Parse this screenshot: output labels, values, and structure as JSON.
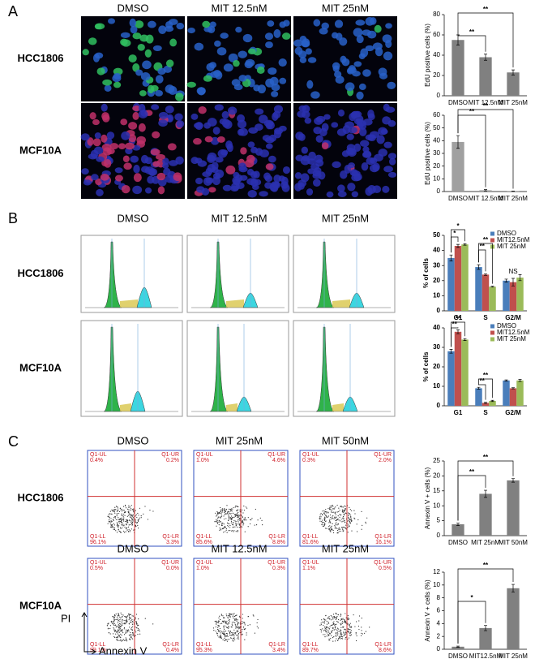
{
  "panels": [
    {
      "label": "A",
      "columns": [
        "DMSO",
        "MIT 12.5nM",
        "MIT 25nM"
      ],
      "rows": [
        "HCC1806",
        "MCF10A"
      ]
    },
    {
      "label": "B",
      "columns": [
        "DMSO",
        "MIT 12.5nM",
        "MIT 25nM"
      ],
      "rows": [
        "HCC1806",
        "MCF10A"
      ]
    },
    {
      "label": "C",
      "columns": [
        [
          "DMSO",
          "MIT 25nM",
          "MIT 50nM"
        ],
        [
          "DMSO",
          "MIT 12.5nM",
          "MIT 25nM"
        ]
      ],
      "rows": [
        "HCC1806",
        "MCF10A"
      ],
      "quadrant_names": [
        "Q1-UL",
        "Q1-UR",
        "Q1-LL",
        "Q1-LR"
      ],
      "quadrants": [
        [
          [
            "0.4%",
            "0.2%",
            "96.1%",
            "3.3%"
          ],
          [
            "1.0%",
            "4.6%",
            "85.6%",
            "8.8%"
          ],
          [
            "0.3%",
            "2.0%",
            "81.6%",
            "16.1%"
          ]
        ],
        [
          [
            "0.5%",
            "0.0%",
            "99.1%",
            "0.4%"
          ],
          [
            "1.0%",
            "0.3%",
            "95.3%",
            "3.4%"
          ],
          [
            "1.1%",
            "0.5%",
            "89.7%",
            "8.6%"
          ]
        ]
      ],
      "y_axis": "PI",
      "x_axis": "Annexin V"
    }
  ],
  "chart_data": [
    {
      "type": "bar",
      "ylabel": "EdU positive cells (%)",
      "categories": [
        "DMSO",
        "MIT 12.5nM",
        "MIT 25nM"
      ],
      "values": [
        55,
        38,
        23
      ],
      "errors": [
        5,
        3,
        2.5
      ],
      "color": "#808080",
      "ylim": [
        0,
        80
      ],
      "yticks": [
        0,
        20,
        40,
        60,
        80
      ],
      "annotations": [
        "**",
        "**"
      ]
    },
    {
      "type": "bar",
      "ylabel": "EdU positive cells (%)",
      "categories": [
        "DMSO",
        "MIT 12.5nM",
        "MIT 25nM"
      ],
      "values": [
        39,
        1,
        0.2
      ],
      "errors": [
        5,
        0.5,
        0.1
      ],
      "color": "#a0a0a0",
      "ylim": [
        0,
        60
      ],
      "yticks": [
        0,
        10,
        20,
        30,
        40,
        50,
        60
      ],
      "annotations": [
        "**",
        "**"
      ]
    },
    {
      "type": "grouped",
      "ylabel": "% of cells",
      "categories": [
        "G1",
        "S",
        "G2/M"
      ],
      "series": [
        {
          "name": "DMSO",
          "color": "#4a7ebb",
          "values": [
            35,
            29,
            20
          ],
          "errors": [
            2,
            1.5,
            1
          ]
        },
        {
          "name": "MIT12.5nM",
          "color": "#c0504d",
          "values": [
            43,
            24,
            19
          ],
          "errors": [
            1,
            0.5,
            2.5
          ]
        },
        {
          "name": "MIT 25nM",
          "color": "#9bbb59",
          "values": [
            44,
            16,
            22
          ],
          "errors": [
            0.5,
            0.3,
            2
          ]
        }
      ],
      "ylim": [
        0,
        50
      ],
      "yticks": [
        0,
        10,
        20,
        30,
        40,
        50
      ],
      "annotations": [
        "*",
        "*",
        "**",
        "**",
        "NS"
      ]
    },
    {
      "type": "grouped",
      "ylabel": "% of cells",
      "categories": [
        "G1",
        "S",
        "G2/M"
      ],
      "series": [
        {
          "name": "DMSO",
          "color": "#4a7ebb",
          "values": [
            28,
            9,
            13
          ],
          "errors": [
            1,
            0.5,
            0.3
          ]
        },
        {
          "name": "MIT12.5nM",
          "color": "#c0504d",
          "values": [
            38,
            1.5,
            9
          ],
          "errors": [
            1,
            0.3,
            0.3
          ]
        },
        {
          "name": "MIT 25nM",
          "color": "#9bbb59",
          "values": [
            34,
            2.5,
            13
          ],
          "errors": [
            0.5,
            0.3,
            0.5
          ]
        }
      ],
      "ylim": [
        0,
        40
      ],
      "yticks": [
        0,
        10,
        20,
        30,
        40
      ],
      "annotations": [
        "**",
        "**",
        "**",
        "**"
      ]
    },
    {
      "type": "bar",
      "ylabel": "Annexin V + cells (%)",
      "categories": [
        "DMSO",
        "MIT 25nM",
        "MIT 50nM"
      ],
      "values": [
        3.8,
        14,
        18.5
      ],
      "errors": [
        0.4,
        1.2,
        0.6
      ],
      "color": "#808080",
      "ylim": [
        0,
        25
      ],
      "yticks": [
        0,
        5,
        10,
        15,
        20,
        25
      ],
      "annotations": [
        "**",
        "**"
      ]
    },
    {
      "type": "bar",
      "ylabel": "Annexin V + cells (%)",
      "categories": [
        "DMSO",
        "MIT12.5nM",
        "MIT 25nM"
      ],
      "values": [
        0.4,
        3.3,
        9.5
      ],
      "errors": [
        0.1,
        0.4,
        0.6
      ],
      "color": "#808080",
      "ylim": [
        0,
        12
      ],
      "yticks": [
        0,
        2,
        4,
        6,
        8,
        10,
        12
      ],
      "annotations": [
        "*",
        "**"
      ]
    }
  ]
}
